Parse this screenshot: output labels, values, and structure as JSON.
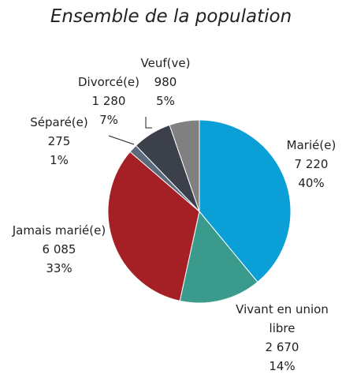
{
  "chart_data": {
    "type": "pie",
    "title": "Ensemble de la population",
    "categories": [
      "Marié(e)",
      "Vivant en union libre",
      "Jamais marié(e)",
      "Séparé(e)",
      "Divorcé(e)",
      "Veuf(ve)"
    ],
    "values": [
      7220,
      2670,
      6085,
      275,
      1280,
      980
    ],
    "value_labels": [
      "7 220",
      "2 670",
      "6 085",
      "275",
      "1 280",
      "980"
    ],
    "percent_labels": [
      "40%",
      "14%",
      "33%",
      "1%",
      "7%",
      "5%"
    ],
    "colors": [
      "#0a9fd6",
      "#3a9b8c",
      "#a52024",
      "#5b6b7b",
      "#3b404b",
      "#808080"
    ]
  }
}
